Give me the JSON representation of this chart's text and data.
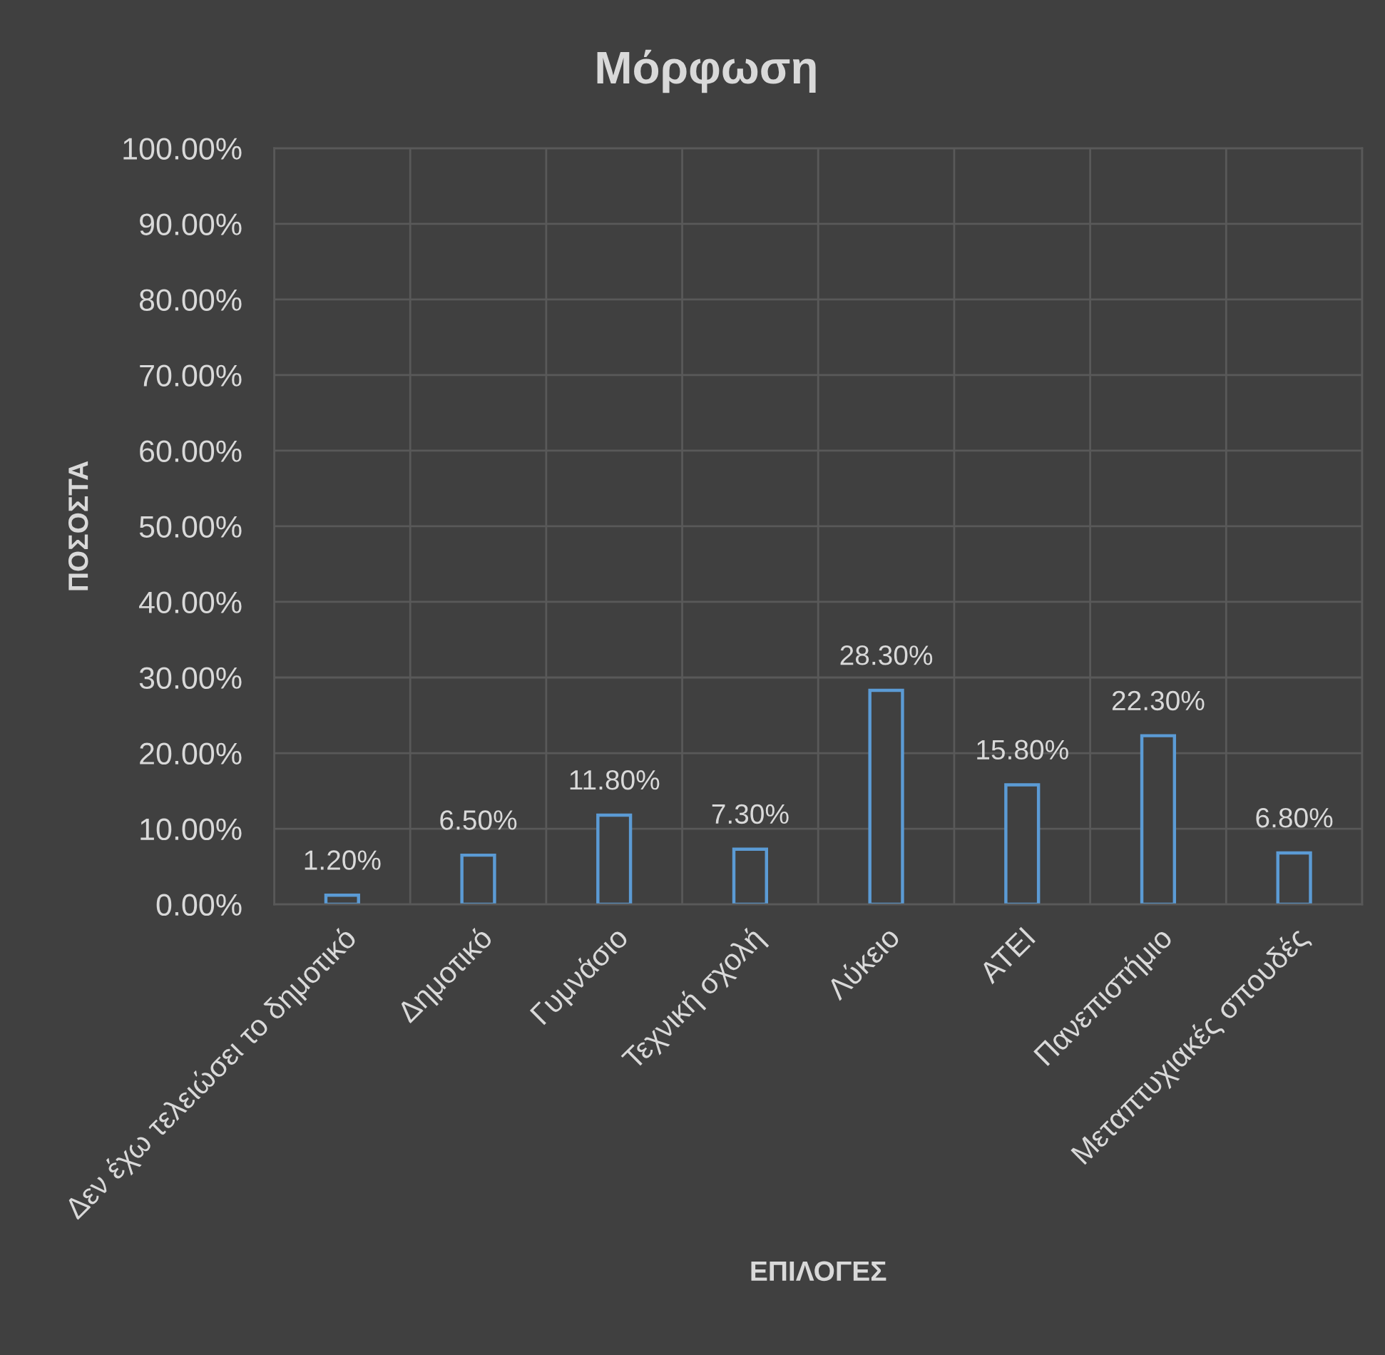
{
  "chart_data": {
    "type": "bar",
    "title": "Μόρφωση",
    "xlabel": "ΕΠΙΛΟΓΕΣ",
    "ylabel": "ΠΟΣΟΣΤΑ",
    "categories": [
      "Δεν έχω τελειώσει το δημοτικό",
      "Δημοτικό",
      "Γυμνάσιο",
      "Τεχνική σχολή",
      "Λύκειο",
      "ΑΤΕΙ",
      "Πανεπιστήμιο",
      "Μεταπτυχιακές σπουδές"
    ],
    "values": [
      1.2,
      6.5,
      11.8,
      7.3,
      28.3,
      15.8,
      22.3,
      6.8
    ],
    "color": "#5b9bd5",
    "value_labels": [
      "1.20%",
      "6.50%",
      "11.80%",
      "7.30%",
      "28.30%",
      "15.80%",
      "22.30%",
      "6.80%"
    ],
    "ylim": [
      0,
      100
    ],
    "yticks": [
      {
        "value": 0,
        "label": "0.00%"
      },
      {
        "value": 10,
        "label": "10.00%"
      },
      {
        "value": 20,
        "label": "20.00%"
      },
      {
        "value": 30,
        "label": "30.00%"
      },
      {
        "value": 40,
        "label": "40.00%"
      },
      {
        "value": 50,
        "label": "50.00%"
      },
      {
        "value": 60,
        "label": "60.00%"
      },
      {
        "value": 70,
        "label": "70.00%"
      },
      {
        "value": 80,
        "label": "80.00%"
      },
      {
        "value": 90,
        "label": "90.00%"
      },
      {
        "value": 100,
        "label": "100.00%"
      }
    ],
    "grid": true
  }
}
